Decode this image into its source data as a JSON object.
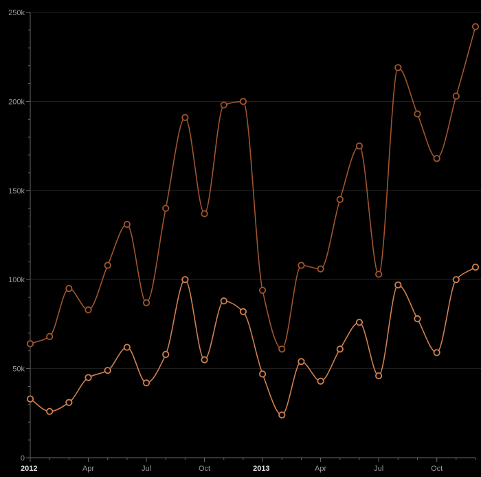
{
  "chart_data": {
    "type": "line",
    "interpolation": "smooth",
    "background": "#000000",
    "grid": true,
    "x_start": "2012-01",
    "x_labels": [
      {
        "month": 0,
        "label": "2012",
        "major": true
      },
      {
        "month": 3,
        "label": "Apr",
        "major": false
      },
      {
        "month": 6,
        "label": "Jul",
        "major": false
      },
      {
        "month": 9,
        "label": "Oct",
        "major": false
      },
      {
        "month": 12,
        "label": "2013",
        "major": true
      },
      {
        "month": 15,
        "label": "Apr",
        "major": false
      },
      {
        "month": 18,
        "label": "Jul",
        "major": false
      },
      {
        "month": 21,
        "label": "Oct",
        "major": false
      }
    ],
    "x_range": [
      "2012-01",
      "2013-12"
    ],
    "y_range": [
      0,
      250000
    ],
    "y_ticks": [
      {
        "value": 0,
        "label": "0"
      },
      {
        "value": 50000,
        "label": "50k"
      },
      {
        "value": 100000,
        "label": "100k"
      },
      {
        "value": 150000,
        "label": "150k"
      },
      {
        "value": 200000,
        "label": "200k"
      },
      {
        "value": 250000,
        "label": "250k"
      }
    ],
    "series": [
      {
        "color": "#a0552e",
        "values": [
          64000,
          68000,
          95000,
          83000,
          108000,
          131000,
          87000,
          140000,
          191000,
          137000,
          198000,
          200000,
          94000,
          61000,
          108000,
          106000,
          145000,
          175000,
          103000,
          219000,
          193000,
          168000,
          203000,
          242000
        ]
      },
      {
        "color": "#d08050",
        "values": [
          33000,
          26000,
          31000,
          45000,
          49000,
          62000,
          42000,
          58000,
          100000,
          55000,
          88000,
          82000,
          47000,
          24000,
          54000,
          43000,
          61000,
          76000,
          46000,
          97000,
          78000,
          59000,
          100000,
          107000
        ]
      }
    ]
  }
}
